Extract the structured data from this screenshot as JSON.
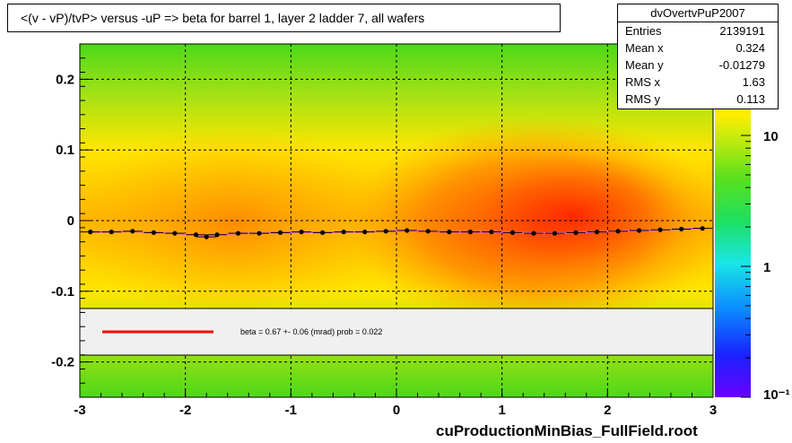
{
  "title": "<(v - vP)/tvP> versus  -uP => beta for barrel 1, layer 2 ladder 7, all wafers",
  "stats": {
    "name": "dvOvertvPuP2007",
    "rows": [
      {
        "label": "Entries",
        "value": "2139191"
      },
      {
        "label": "Mean x",
        "value": "0.324"
      },
      {
        "label": "Mean y",
        "value": "-0.01279"
      },
      {
        "label": "RMS x",
        "value": "1.63"
      },
      {
        "label": "RMS y",
        "value": "0.113"
      }
    ]
  },
  "footer": "cuProductionMinBias_FullField.root",
  "fit_legend": {
    "text": "beta =    0.67 +-  0.06 (mrad) prob = 0.022",
    "line_color": "#ff0000"
  },
  "chart_data": {
    "type": "heatmap",
    "title": "<(v - vP)/tvP> versus  -uP => beta for barrel 1, layer 2 ladder 7, all wafers",
    "xlabel": "",
    "ylabel": "",
    "xlim": [
      -3,
      3
    ],
    "ylim": [
      -0.25,
      0.25
    ],
    "x_ticks": [
      -3,
      -2,
      -1,
      0,
      1,
      2,
      3
    ],
    "x_tick_labels": [
      "-3",
      "-2",
      "-1",
      "0",
      "1",
      "2",
      "3"
    ],
    "y_ticks": [
      -0.2,
      -0.1,
      0,
      0.1,
      0.2
    ],
    "y_tick_labels": [
      "-0.2",
      "-0.1",
      "0",
      "0.1",
      "0.2"
    ],
    "grid": true,
    "colorbar": {
      "scale": "log",
      "ticks": [
        0.1,
        1,
        10
      ],
      "tick_labels": [
        "10⁻¹",
        "1",
        "10"
      ]
    },
    "series": [
      {
        "x": [
          -2.9,
          -2.7,
          -2.5,
          -2.3,
          -2.1,
          -1.9,
          -1.8,
          -1.7,
          -1.5,
          -1.3,
          -1.1,
          -0.9,
          -0.7,
          -0.5,
          -0.3,
          -0.1,
          0.1,
          0.3,
          0.5,
          0.7,
          0.9,
          1.1,
          1.3,
          1.5,
          1.7,
          1.9,
          2.1,
          2.3,
          2.5,
          2.7,
          2.9
        ],
        "y": [
          -0.016,
          -0.016,
          -0.015,
          -0.017,
          -0.018,
          -0.02,
          -0.023,
          -0.02,
          -0.018,
          -0.018,
          -0.017,
          -0.016,
          -0.017,
          -0.016,
          -0.016,
          -0.015,
          -0.014,
          -0.015,
          -0.016,
          -0.016,
          -0.016,
          -0.017,
          -0.018,
          -0.018,
          -0.017,
          -0.016,
          -0.015,
          -0.014,
          -0.013,
          -0.012,
          -0.011
        ]
      }
    ]
  }
}
